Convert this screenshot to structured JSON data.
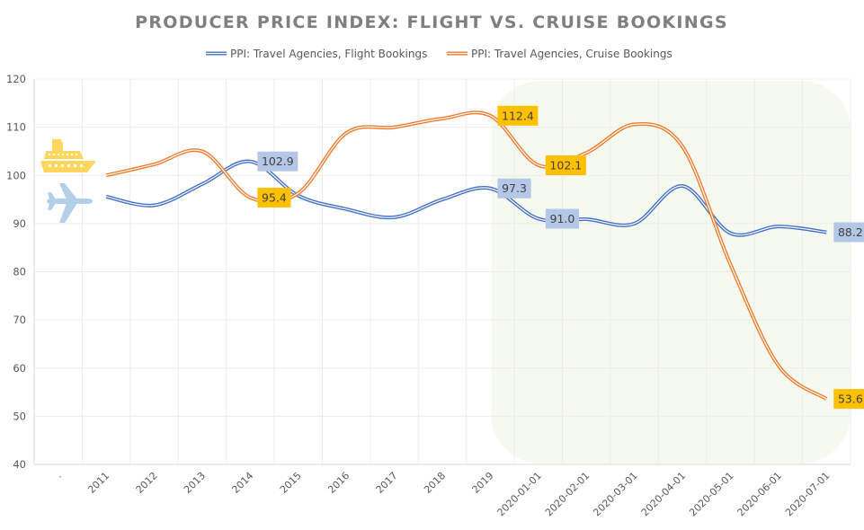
{
  "chart_data": {
    "type": "line",
    "title": "PRODUCER PRICE INDEX: FLIGHT VS. CRUISE BOOKINGS",
    "xlabel": "",
    "ylabel": "",
    "ylim": [
      40,
      120
    ],
    "yticks": [
      40,
      50,
      60,
      70,
      80,
      90,
      100,
      110,
      120
    ],
    "grid": true,
    "legend_position": "top-center",
    "smooth": true,
    "categories": [
      ".",
      "2011",
      "2012",
      "2013",
      "2014",
      "2015",
      "2016",
      "2017",
      "2018",
      "2019",
      "2020-01-01",
      "2020-02-01",
      "2020-03-01",
      "2020-04-01",
      "2020-05-01",
      "2020-06-01",
      "2020-07-01"
    ],
    "series": [
      {
        "name": "PPI: Travel Agencies, Flight Bookings",
        "color": "#4472C4",
        "label_bg": "#B4C7E7",
        "values": [
          null,
          95.6,
          93.8,
          98.2,
          102.9,
          95.8,
          93.0,
          91.3,
          95.0,
          97.3,
          91.0,
          90.9,
          90.0,
          97.8,
          88.0,
          89.4,
          88.2
        ],
        "labeled_points": [
          {
            "category": "2014",
            "text": "102.9"
          },
          {
            "category": "2019",
            "text": "97.3"
          },
          {
            "category": "2020-01-01",
            "text": "91.0"
          },
          {
            "category": "2020-07-01",
            "text": "88.2"
          }
        ]
      },
      {
        "name": "PPI: Travel Agencies, Cruise Bookings",
        "color": "#ED7D31",
        "label_bg": "#FFC000",
        "values": [
          null,
          100.0,
          102.3,
          105.0,
          95.4,
          96.3,
          108.8,
          110.0,
          111.8,
          112.4,
          102.1,
          104.7,
          110.6,
          106.0,
          81.5,
          60.5,
          53.6
        ],
        "labeled_points": [
          {
            "category": "2014",
            "text": "95.4"
          },
          {
            "category": "2019",
            "text": "112.4"
          },
          {
            "category": "2020-01-01",
            "text": "102.1"
          },
          {
            "category": "2020-07-01",
            "text": "53.6"
          }
        ]
      }
    ],
    "annotations": {
      "highlight_region": {
        "from_category": "2020-01-01",
        "to_category": "2020-07-01",
        "color": "#F6F9F0"
      },
      "icons": [
        {
          "name": "cruise-ship-icon",
          "color": "#FFD75E",
          "series": "PPI: Travel Agencies, Cruise Bookings"
        },
        {
          "name": "airplane-icon",
          "color": "#B4CFEA",
          "series": "PPI: Travel Agencies, Flight Bookings"
        }
      ]
    }
  }
}
